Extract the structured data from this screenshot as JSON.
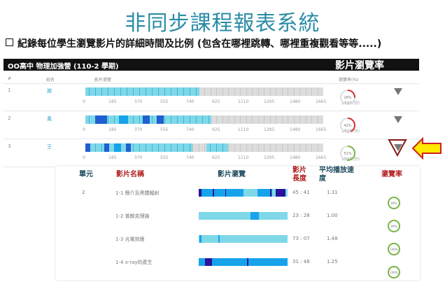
{
  "title": "非同步課程報表系統",
  "subtitle": "紀錄每位學生瀏覽影片的詳細時間及比例 (包含在哪裡跳轉、哪裡重複觀看等等.....)",
  "header": {
    "course": "OO高中 物理加強營 (110-2 學期)",
    "overlay": "影片瀏覽率"
  },
  "columns": {
    "num": "#",
    "name": "姓名",
    "video": "影片瀏覽",
    "rate": "瀏覽率(%)"
  },
  "ticks": [
    "0",
    "185",
    "370",
    "555",
    "740",
    "925",
    "1110",
    "1295",
    "1480",
    "1665",
    "1846(分)"
  ],
  "colors": {
    "light": "#7fd8e8",
    "mid": "#16a3ea",
    "dark": "#1f5fcf",
    "navy": "#2a139c",
    "red": "#d93030",
    "green": "#7ab648"
  },
  "students": [
    {
      "num": "1",
      "name": "謝",
      "rate": 26,
      "rate_label": "26%",
      "watched": [
        [
          0,
          0.48,
          "light"
        ]
      ]
    },
    {
      "num": "2",
      "name": "黃",
      "rate": 42,
      "rate_label": "42%",
      "watched": [
        [
          0,
          0.53,
          "light"
        ],
        [
          0.04,
          0.09,
          "dark"
        ],
        [
          0.14,
          0.18,
          "mid"
        ],
        [
          0.24,
          0.27,
          "dark"
        ],
        [
          0.3,
          0.33,
          "dark"
        ]
      ]
    },
    {
      "num": "3",
      "name": "王",
      "rate": 51,
      "rate_label": "51%",
      "watched": [
        [
          0,
          0.45,
          "light"
        ],
        [
          0.0,
          0.02,
          "dark"
        ],
        [
          0.08,
          0.1,
          "dark"
        ],
        [
          0.12,
          0.15,
          "mid"
        ],
        [
          0.17,
          0.19,
          "dark"
        ],
        [
          0.51,
          0.6,
          "light"
        ]
      ]
    }
  ],
  "detail": {
    "headers": {
      "unit": "單元",
      "video_name": "影片名稱",
      "browse": "影片瀏覽",
      "length": "影片長度",
      "speed": "平均播放速度",
      "rate": "瀏覽率"
    },
    "unit": "2",
    "videos": [
      {
        "name": "1-1 簡介及黑體輻射",
        "length": "45 : 41",
        "speed": "1.31",
        "rate": 99,
        "rate_label": "99%",
        "segments": [
          [
            0,
            0.5,
            "mid"
          ],
          [
            0,
            0.03,
            "navy"
          ],
          [
            0.16,
            0.17,
            "navy"
          ],
          [
            0.3,
            0.31,
            "navy"
          ],
          [
            0.66,
            0.83,
            "mid"
          ],
          [
            0.8,
            0.82,
            "navy"
          ],
          [
            0.87,
            0.98,
            "navy"
          ]
        ]
      },
      {
        "name": "1-2 普朗克理論",
        "length": "23 : 28",
        "speed": "1.00",
        "rate": 99,
        "rate_label": "99%",
        "segments": [
          [
            0.58,
            0.68,
            "mid"
          ]
        ]
      },
      {
        "name": "1-3 光電效應",
        "length": "73 : 07",
        "speed": "1.48",
        "rate": 100,
        "rate_label": "100%",
        "segments": [
          [
            0.01,
            0.03,
            "mid"
          ],
          [
            0.22,
            0.24,
            "mid"
          ]
        ]
      },
      {
        "name": "1-4 x-ray的產生",
        "length": "31 : 48",
        "speed": "1.25",
        "rate": 100,
        "rate_label": "100%",
        "segments": [
          [
            0,
            1,
            "mid"
          ],
          [
            0.07,
            0.15,
            "navy"
          ],
          [
            0.54,
            0.56,
            "navy"
          ]
        ]
      }
    ]
  }
}
